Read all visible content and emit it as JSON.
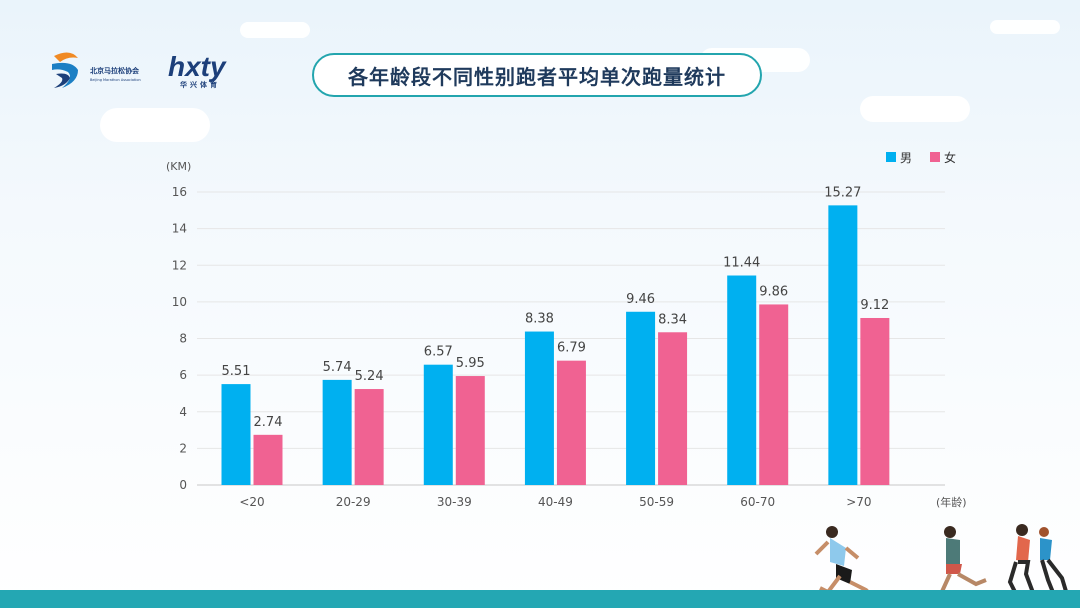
{
  "header": {
    "org_name": "北京马拉松协会",
    "org_name_en": "Beijing Marathon Association",
    "brand_name": "hxty",
    "brand_cn": "华兴体育"
  },
  "colors": {
    "male": "#00b0f0",
    "female": "#f06292",
    "accent": "#23a5ae",
    "band": "#24a7b3"
  },
  "chart_data": {
    "type": "bar",
    "title": "各年龄段不同性别跑者平均单次跑量统计",
    "ylabel": "(KM)",
    "xlabel": "(年龄)",
    "ylim": [
      0,
      16
    ],
    "yticks": [
      0,
      2,
      4,
      6,
      8,
      10,
      12,
      14,
      16
    ],
    "grid": true,
    "legend_position": "top-right",
    "categories": [
      "<20",
      "20-29",
      "30-39",
      "40-49",
      "50-59",
      "60-70",
      ">70"
    ],
    "series": [
      {
        "name": "男",
        "values": [
          5.51,
          5.74,
          6.57,
          8.38,
          9.46,
          11.44,
          15.27
        ]
      },
      {
        "name": "女",
        "values": [
          2.74,
          5.24,
          5.95,
          6.79,
          8.34,
          9.86,
          9.12
        ]
      }
    ]
  }
}
